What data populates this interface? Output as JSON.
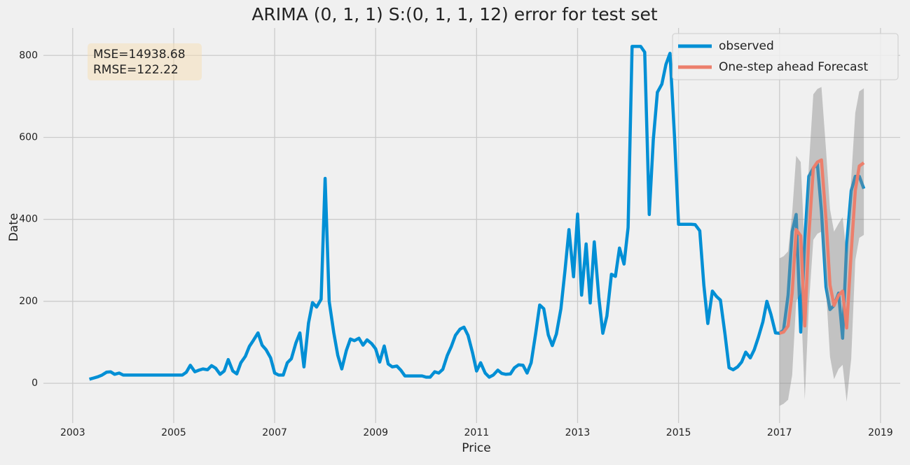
{
  "chart_data": {
    "type": "line",
    "title": "ARIMA (0, 1, 1) S:(0, 1, 1, 12) error for test set",
    "xlabel": "Price",
    "ylabel": "Date",
    "annotations": [
      "MSE=14938.68",
      "RMSE=122.22"
    ],
    "xlim": [
      2002.42,
      2019.39
    ],
    "ylim": [
      -97,
      867
    ],
    "xticks": [
      2003,
      2005,
      2007,
      2009,
      2011,
      2013,
      2015,
      2017,
      2019
    ],
    "yticks": [
      0,
      200,
      400,
      600,
      800
    ],
    "grid": true,
    "legend": "upper right",
    "series": [
      {
        "name": "observed",
        "color": "#008fd5",
        "x": [
          2003.33,
          2003.42,
          2003.5,
          2003.58,
          2003.67,
          2003.75,
          2003.83,
          2003.92,
          2004,
          2004.08,
          2004.17,
          2004.25,
          2004.33,
          2004.42,
          2004.5,
          2004.58,
          2004.67,
          2004.75,
          2004.83,
          2004.92,
          2005,
          2005.08,
          2005.17,
          2005.25,
          2005.33,
          2005.42,
          2005.5,
          2005.58,
          2005.67,
          2005.75,
          2005.83,
          2005.92,
          2006,
          2006.08,
          2006.17,
          2006.25,
          2006.33,
          2006.42,
          2006.5,
          2006.58,
          2006.67,
          2006.75,
          2006.83,
          2006.92,
          2007,
          2007.08,
          2007.17,
          2007.25,
          2007.33,
          2007.42,
          2007.5,
          2007.58,
          2007.67,
          2007.75,
          2007.83,
          2007.92,
          2008,
          2008.08,
          2008.17,
          2008.25,
          2008.33,
          2008.42,
          2008.5,
          2008.58,
          2008.67,
          2008.75,
          2008.83,
          2008.92,
          2009,
          2009.08,
          2009.17,
          2009.25,
          2009.33,
          2009.42,
          2009.5,
          2009.58,
          2009.67,
          2009.75,
          2009.83,
          2009.92,
          2010,
          2010.08,
          2010.17,
          2010.25,
          2010.33,
          2010.42,
          2010.5,
          2010.58,
          2010.67,
          2010.75,
          2010.83,
          2010.92,
          2011,
          2011.08,
          2011.17,
          2011.25,
          2011.33,
          2011.42,
          2011.5,
          2011.58,
          2011.67,
          2011.75,
          2011.83,
          2011.92,
          2012,
          2012.08,
          2012.17,
          2012.25,
          2012.33,
          2012.42,
          2012.5,
          2012.58,
          2012.67,
          2012.75,
          2012.83,
          2012.92,
          2013,
          2013.08,
          2013.17,
          2013.25,
          2013.33,
          2013.42,
          2013.5,
          2013.58,
          2013.67,
          2013.75,
          2013.83,
          2013.92,
          2014,
          2014.08,
          2014.17,
          2014.25,
          2014.33,
          2014.42,
          2014.5,
          2014.58,
          2014.67,
          2014.75,
          2014.83,
          2014.92,
          2015,
          2015.08,
          2015.17,
          2015.25,
          2015.33,
          2015.42,
          2015.5,
          2015.58,
          2015.67,
          2015.75,
          2015.83,
          2015.92,
          2016,
          2016.08,
          2016.17,
          2016.25,
          2016.33,
          2016.42,
          2016.5,
          2016.58,
          2016.67,
          2016.75,
          2016.83,
          2016.92,
          2017,
          2017.08,
          2017.17,
          2017.25,
          2017.33,
          2017.42,
          2017.5,
          2017.58,
          2017.67,
          2017.75,
          2017.83,
          2017.92,
          2018,
          2018.08,
          2018.17,
          2018.25,
          2018.33,
          2018.42,
          2018.5,
          2018.58,
          2018.67
        ],
        "values": [
          10,
          13,
          16,
          20,
          27,
          28,
          22,
          25,
          20,
          20,
          20,
          20,
          20,
          20,
          20,
          20,
          20,
          20,
          20,
          20,
          20,
          20,
          20,
          27,
          44,
          28,
          32,
          35,
          33,
          43,
          37,
          22,
          30,
          58,
          30,
          23,
          50,
          66,
          90,
          105,
          123,
          93,
          82,
          62,
          25,
          20,
          20,
          50,
          60,
          98,
          123,
          40,
          147,
          197,
          186,
          205,
          500,
          200,
          124,
          68,
          35,
          80,
          108,
          104,
          110,
          93,
          106,
          97,
          84,
          52,
          91,
          47,
          40,
          42,
          32,
          18,
          18,
          18,
          18,
          18,
          15,
          15,
          28,
          25,
          34,
          68,
          90,
          117,
          132,
          137,
          117,
          74,
          30,
          50,
          25,
          15,
          20,
          32,
          24,
          22,
          23,
          38,
          45,
          44,
          25,
          50,
          122,
          191,
          182,
          118,
          92,
          120,
          182,
          275,
          375,
          260,
          413,
          215,
          340,
          196,
          345,
          210,
          122,
          164,
          266,
          261,
          330,
          291,
          380,
          822,
          822,
          822,
          808,
          412,
          595,
          710,
          730,
          778,
          805,
          600,
          388,
          388,
          388,
          388,
          387,
          372,
          240,
          146,
          225,
          212,
          203,
          120,
          38,
          33,
          40,
          52,
          76,
          62,
          82,
          112,
          150,
          200,
          168,
          123,
          122,
          130,
          215,
          370,
          412,
          125,
          350,
          505,
          525,
          535,
          420,
          235,
          180,
          190,
          220,
          110,
          340,
          470,
          505,
          505,
          475
        ]
      },
      {
        "name": "One-step ahead Forecast",
        "color": "#ec7f6c",
        "band_color": "#8a8a8a",
        "x": [
          2017,
          2017.08,
          2017.17,
          2017.25,
          2017.33,
          2017.42,
          2017.5,
          2017.58,
          2017.67,
          2017.75,
          2017.83,
          2017.92,
          2018,
          2018.08,
          2018.17,
          2018.25,
          2018.33,
          2018.42,
          2018.5,
          2018.58,
          2018.67
        ],
        "values": [
          122,
          125,
          140,
          220,
          375,
          360,
          140,
          360,
          525,
          540,
          545,
          400,
          240,
          190,
          215,
          225,
          135,
          320,
          470,
          530,
          538
        ],
        "lower": [
          -55,
          -50,
          -40,
          20,
          200,
          220,
          -40,
          190,
          350,
          365,
          370,
          230,
          65,
          10,
          35,
          45,
          -45,
          60,
          300,
          355,
          362
        ],
        "upper": [
          305,
          310,
          322,
          415,
          555,
          540,
          318,
          530,
          705,
          718,
          723,
          570,
          425,
          370,
          390,
          405,
          315,
          500,
          660,
          712,
          720
        ]
      }
    ]
  }
}
